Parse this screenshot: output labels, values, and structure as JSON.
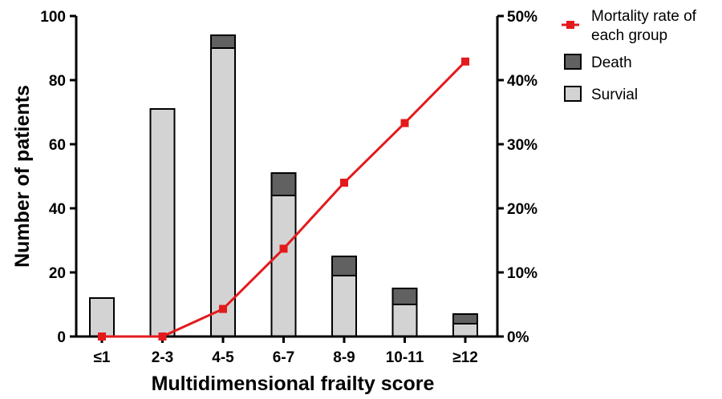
{
  "chart_data": {
    "type": "bar",
    "stacked": true,
    "categories": [
      "≤1",
      "2-3",
      "4-5",
      "6-7",
      "8-9",
      "10-11",
      "≥12"
    ],
    "series": [
      {
        "name": "Survial",
        "type": "bar",
        "axis": "left",
        "color": "#d3d3d3",
        "values": [
          12,
          71,
          90,
          44,
          19,
          10,
          4
        ]
      },
      {
        "name": "Death",
        "type": "bar",
        "axis": "left",
        "color": "#616161",
        "values": [
          0,
          0,
          4,
          7,
          6,
          5,
          3
        ]
      },
      {
        "name": "Mortality rate of each group",
        "type": "line",
        "axis": "right",
        "color": "#e31a1c",
        "values": [
          0,
          0,
          4.3,
          13.7,
          24.0,
          33.3,
          42.9
        ]
      }
    ],
    "xlabel": "Multidimensional frailty score",
    "ylabel": "Number of patients",
    "ylim": [
      0,
      100
    ],
    "yticks": [
      "0",
      "20",
      "40",
      "60",
      "80",
      "100"
    ],
    "y2lim": [
      0,
      50
    ],
    "y2ticks": [
      "0%",
      "10%",
      "20%",
      "30%",
      "40%",
      "50%"
    ],
    "legend_position": "top-right",
    "legend": [
      {
        "label_lines": [
          "Mortality rate of",
          "each group"
        ],
        "kind": "line",
        "color": "#e31a1c"
      },
      {
        "label_lines": [
          "Death"
        ],
        "kind": "box",
        "color": "#616161"
      },
      {
        "label_lines": [
          "Survial"
        ],
        "kind": "box",
        "color": "#d3d3d3"
      }
    ],
    "grid": false
  }
}
